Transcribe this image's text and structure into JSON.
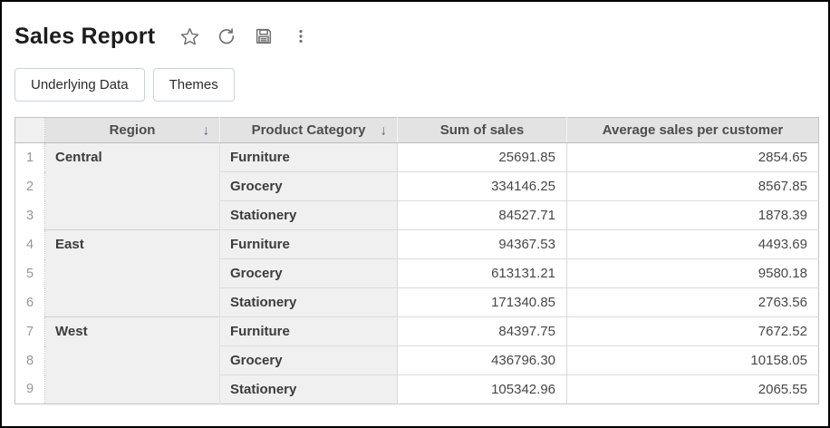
{
  "header": {
    "title": "Sales Report",
    "icons": [
      "favorite-star",
      "refresh",
      "save",
      "more-options"
    ]
  },
  "toolbar": {
    "buttons": [
      {
        "label": "Underlying Data"
      },
      {
        "label": "Themes"
      }
    ]
  },
  "colors": {
    "button_border": "#c9d3e0",
    "header_bg": "#e3e3e3",
    "group_cell_bg": "#f0f0f0",
    "icon_gray": "#6e6e6e"
  },
  "table": {
    "columns": [
      {
        "label": "",
        "sortable": false
      },
      {
        "label": "Region",
        "sortable": true,
        "sort": "desc"
      },
      {
        "label": "Product Category",
        "sortable": true,
        "sort": "desc"
      },
      {
        "label": "Sum of sales",
        "sortable": false
      },
      {
        "label": "Average sales per customer",
        "sortable": false
      }
    ],
    "sort_arrow_glyph": "↓",
    "rows": [
      {
        "num": "1",
        "region": "Central",
        "region_span": 3,
        "category": "Furniture",
        "sum": "25691.85",
        "avg": "2854.65"
      },
      {
        "num": "2",
        "category": "Grocery",
        "sum": "334146.25",
        "avg": "8567.85"
      },
      {
        "num": "3",
        "category": "Stationery",
        "sum": "84527.71",
        "avg": "1878.39"
      },
      {
        "num": "4",
        "region": "East",
        "region_span": 3,
        "category": "Furniture",
        "sum": "94367.53",
        "avg": "4493.69"
      },
      {
        "num": "5",
        "category": "Grocery",
        "sum": "613131.21",
        "avg": "9580.18"
      },
      {
        "num": "6",
        "category": "Stationery",
        "sum": "171340.85",
        "avg": "2763.56"
      },
      {
        "num": "7",
        "region": "West",
        "region_span": 3,
        "category": "Furniture",
        "sum": "84397.75",
        "avg": "7672.52"
      },
      {
        "num": "8",
        "category": "Grocery",
        "sum": "436796.30",
        "avg": "10158.05"
      },
      {
        "num": "9",
        "category": "Stationery",
        "sum": "105342.96",
        "avg": "2065.55"
      }
    ]
  }
}
